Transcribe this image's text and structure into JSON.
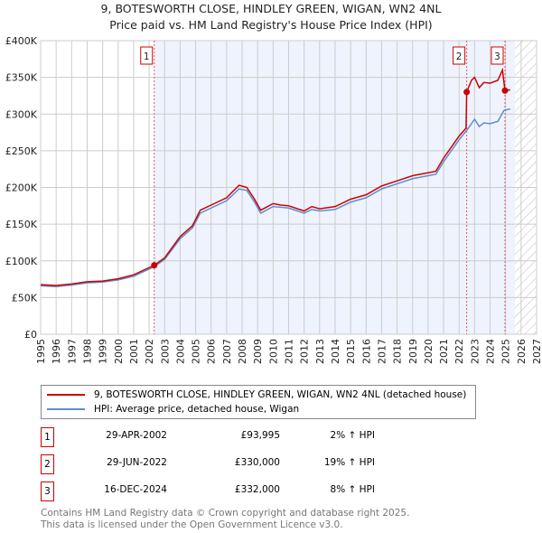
{
  "chart_data": {
    "type": "line",
    "title": "9, BOTESWORTH CLOSE, HINDLEY GREEN, WIGAN, WN2 4NL",
    "subtitle": "Price paid vs. HM Land Registry's House Price Index (HPI)",
    "xlim": [
      1995,
      2027
    ],
    "ylim": [
      0,
      400000
    ],
    "x_ticks": [
      "1995",
      "1996",
      "1997",
      "1998",
      "1999",
      "2000",
      "2001",
      "2002",
      "2003",
      "2004",
      "2005",
      "2006",
      "2007",
      "2008",
      "2009",
      "2010",
      "2011",
      "2012",
      "2013",
      "2014",
      "2015",
      "2016",
      "2017",
      "2018",
      "2019",
      "2020",
      "2021",
      "2022",
      "2023",
      "2024",
      "2025",
      "2026",
      "2027"
    ],
    "y_ticks": [
      {
        "v": 0,
        "label": "£0"
      },
      {
        "v": 50000,
        "label": "£50K"
      },
      {
        "v": 100000,
        "label": "£100K"
      },
      {
        "v": 150000,
        "label": "£150K"
      },
      {
        "v": 200000,
        "label": "£200K"
      },
      {
        "v": 250000,
        "label": "£250K"
      },
      {
        "v": 300000,
        "label": "£300K"
      },
      {
        "v": 350000,
        "label": "£350K"
      },
      {
        "v": 400000,
        "label": "£400K"
      }
    ],
    "shaded_range": [
      2002.33,
      2025.6
    ],
    "hatched_from": 2025.6,
    "series": [
      {
        "name": "9, BOTESWORTH CLOSE, HINDLEY GREEN, WIGAN, WN2 4NL (detached house)",
        "color": "#cc0000",
        "x": [
          1995,
          1996,
          1997,
          1998,
          1999,
          2000,
          2001,
          2002.33,
          2003,
          2004,
          2004.8,
          2005.3,
          2006,
          2007,
          2007.8,
          2008.3,
          2008.8,
          2009.2,
          2010,
          2010.5,
          2011,
          2012,
          2012.5,
          2013,
          2014,
          2015,
          2016,
          2017,
          2018,
          2019,
          2020,
          2020.5,
          2021,
          2021.5,
          2022,
          2022.45,
          2022.49,
          2022.8,
          2023,
          2023.3,
          2023.6,
          2024,
          2024.5,
          2024.8,
          2024.96,
          2025.3
        ],
        "y": [
          67500,
          66500,
          68500,
          71500,
          72500,
          75500,
          81000,
          93995,
          104000,
          133000,
          148000,
          169000,
          176000,
          186000,
          203000,
          200000,
          184000,
          169000,
          178000,
          176000,
          175000,
          168000,
          174000,
          171000,
          174000,
          184000,
          190000,
          202000,
          209000,
          216000,
          220000,
          222000,
          240000,
          255000,
          270000,
          281000,
          330000,
          346000,
          350000,
          336000,
          343000,
          342000,
          346000,
          360000,
          332000,
          333000
        ]
      },
      {
        "name": "HPI: Average price, detached house, Wigan",
        "color": "#5b8fd0",
        "x": [
          1995,
          1996,
          1997,
          1998,
          1999,
          2000,
          2001,
          2002.33,
          2003,
          2004,
          2004.8,
          2005.3,
          2006,
          2007,
          2007.8,
          2008.3,
          2008.8,
          2009.2,
          2010,
          2010.5,
          2011,
          2012,
          2012.5,
          2013,
          2014,
          2015,
          2016,
          2017,
          2018,
          2019,
          2020,
          2020.5,
          2021,
          2021.5,
          2022,
          2022.5,
          2023,
          2023.3,
          2023.6,
          2024,
          2024.5,
          2024.9,
          2025.3
        ],
        "y": [
          66000,
          65000,
          67000,
          70000,
          71000,
          74000,
          79000,
          92000,
          102000,
          130000,
          145000,
          165000,
          172000,
          182000,
          198000,
          196000,
          180000,
          165000,
          174000,
          173000,
          172000,
          165000,
          170000,
          168000,
          170000,
          180000,
          186000,
          198000,
          205000,
          212000,
          216000,
          218000,
          235000,
          250000,
          265000,
          278000,
          293000,
          283000,
          288000,
          287000,
          290000,
          305000,
          307000
        ]
      }
    ],
    "sales": [
      {
        "id": "1",
        "x": 2002.33,
        "y": 93995,
        "date": "29-APR-2002",
        "price": "£93,995",
        "hpi": "2% ↑ HPI"
      },
      {
        "id": "2",
        "x": 2022.49,
        "y": 330000,
        "date": "29-JUN-2022",
        "price": "£330,000",
        "hpi": "19% ↑ HPI"
      },
      {
        "id": "3",
        "x": 2024.96,
        "y": 332000,
        "date": "16-DEC-2024",
        "price": "£332,000",
        "hpi": "8% ↑ HPI"
      }
    ]
  },
  "legend": {
    "red": "9, BOTESWORTH CLOSE, HINDLEY GREEN, WIGAN, WN2 4NL (detached house)",
    "blue": "HPI: Average price, detached house, Wigan"
  },
  "footer": {
    "line1": "Contains HM Land Registry data © Crown copyright and database right 2025.",
    "line2": "This data is licensed under the Open Government Licence v3.0."
  }
}
